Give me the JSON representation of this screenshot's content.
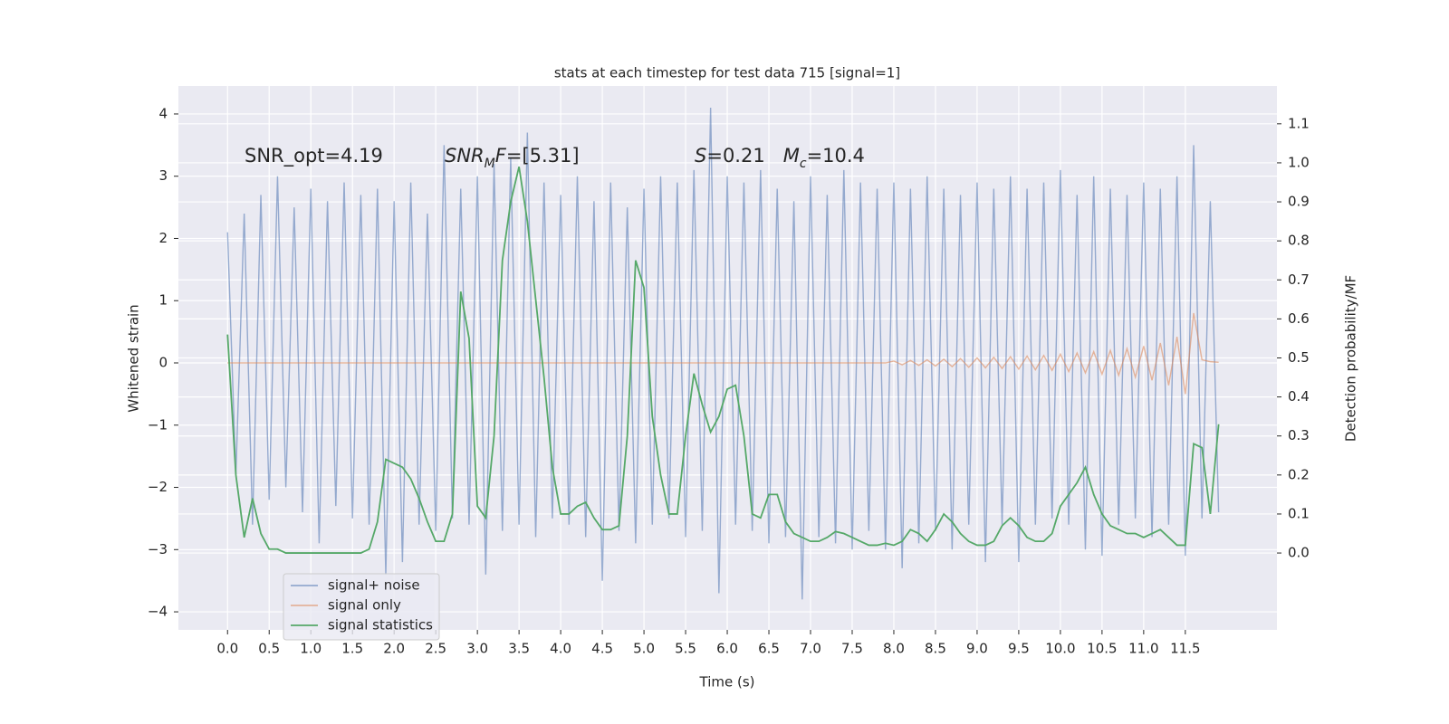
{
  "chart_data": {
    "type": "line",
    "title": "stats at each timestep for test data 715 [signal=1]",
    "xlabel": "Time (s)",
    "ylabel": "Whitened strain",
    "y2label": "Detection probability/MF",
    "annotations": [
      {
        "parts": [
          {
            "text": "SNR_opt=4.19",
            "style": "normal"
          }
        ]
      },
      {
        "parts": [
          {
            "text": "SNR",
            "style": "italic"
          },
          {
            "text": "M",
            "style": "sub"
          },
          {
            "text": "F",
            "style": "italic"
          },
          {
            "text": "=[5.31]",
            "style": "normal"
          }
        ]
      },
      {
        "parts": [
          {
            "text": "S",
            "style": "italic"
          },
          {
            "text": "=0.21   ",
            "style": "normal"
          },
          {
            "text": "M",
            "style": "italic"
          },
          {
            "text": "c",
            "style": "sub"
          },
          {
            "text": "=10.4",
            "style": "normal"
          }
        ]
      }
    ],
    "xlim": [
      -0.59,
      12.6
    ],
    "ylim": [
      -4.29,
      4.45
    ],
    "y2lim": [
      -0.197,
      1.197
    ],
    "xticks": [
      {
        "value": 0,
        "label": "0.0"
      },
      0.5,
      {
        "value": 1,
        "label": "1.0"
      },
      1.5,
      {
        "value": 2,
        "label": "2.0"
      },
      2.5,
      {
        "value": 3,
        "label": "3.0"
      },
      3.5,
      {
        "value": 4,
        "label": "4.0"
      },
      4.5,
      {
        "value": 5,
        "label": "5.0"
      },
      5.5,
      {
        "value": 6,
        "label": "6.0"
      },
      6.5,
      {
        "value": 7,
        "label": "7.0"
      },
      7.5,
      {
        "value": 8,
        "label": "8.0"
      },
      8.5,
      {
        "value": 9,
        "label": "9.0"
      },
      9.5,
      {
        "value": 10,
        "label": "10.0"
      },
      10.5,
      {
        "value": 11,
        "label": "11.0"
      },
      11.5
    ],
    "yticks": [
      {
        "value": -4,
        "label": "−4"
      },
      {
        "value": -3,
        "label": "−3"
      },
      {
        "value": -2,
        "label": "−2"
      },
      {
        "value": -1,
        "label": "−1"
      },
      0,
      1,
      2,
      3,
      4
    ],
    "y2ticks": [
      {
        "value": 0,
        "label": "0.0"
      },
      0.1,
      0.2,
      0.3,
      0.4,
      0.5,
      0.6,
      0.7,
      0.8,
      0.9,
      {
        "value": 1,
        "label": "1.0"
      },
      1.1
    ],
    "grid": true,
    "legend": "lower left",
    "x": [
      0,
      0.1,
      0.2,
      0.3,
      0.4,
      0.5,
      0.6,
      0.7,
      0.8,
      0.9,
      1,
      1.1,
      1.2,
      1.3,
      1.4,
      1.5,
      1.6,
      1.7,
      1.8,
      1.9,
      2,
      2.1,
      2.2,
      2.3,
      2.4,
      2.5,
      2.6,
      2.7,
      2.8,
      2.9,
      3,
      3.1,
      3.2,
      3.3,
      3.4,
      3.5,
      3.6,
      3.7,
      3.8,
      3.9,
      4,
      4.1,
      4.2,
      4.3,
      4.4,
      4.5,
      4.6,
      4.7,
      4.8,
      4.9,
      5,
      5.1,
      5.2,
      5.3,
      5.4,
      5.5,
      5.6,
      5.7,
      5.8,
      5.9,
      6,
      6.1,
      6.2,
      6.3,
      6.4,
      6.5,
      6.6,
      6.7,
      6.8,
      6.9,
      7,
      7.1,
      7.2,
      7.3,
      7.4,
      7.5,
      7.6,
      7.7,
      7.8,
      7.9,
      8,
      8.1,
      8.2,
      8.3,
      8.4,
      8.5,
      8.6,
      8.7,
      8.8,
      8.9,
      9,
      9.1,
      9.2,
      9.3,
      9.4,
      9.5,
      9.6,
      9.7,
      9.8,
      9.9,
      10,
      10.1,
      10.2,
      10.3,
      10.4,
      10.5,
      10.6,
      10.7,
      10.8,
      10.9,
      11,
      11.1,
      11.2,
      11.3,
      11.4,
      11.5,
      11.6,
      11.7,
      11.8,
      11.9
    ],
    "series": [
      {
        "name": "signal+ noise",
        "color": "#4c72b0",
        "values": [
          2.1,
          -1.8,
          2.4,
          -2.6,
          2.7,
          -2.2,
          3.0,
          -2.0,
          2.5,
          -2.4,
          2.8,
          -2.9,
          2.6,
          -2.3,
          2.9,
          -2.5,
          2.7,
          -2.6,
          2.8,
          -3.4,
          2.6,
          -3.2,
          2.9,
          -2.6,
          2.4,
          -2.7,
          3.5,
          -2.5,
          2.8,
          -2.6,
          3.0,
          -3.4,
          3.2,
          -2.7,
          3.3,
          -2.6,
          3.7,
          -2.8,
          2.9,
          -2.5,
          2.7,
          -2.6,
          3.0,
          -2.8,
          2.6,
          -3.5,
          2.9,
          -2.7,
          2.5,
          -2.9,
          2.8,
          -2.6,
          3.0,
          -2.5,
          2.9,
          -2.8,
          3.1,
          -2.7,
          4.1,
          -3.7,
          3.0,
          -2.6,
          2.9,
          -2.7,
          3.1,
          -2.9,
          2.8,
          -2.8,
          2.6,
          -3.8,
          3.0,
          -2.8,
          2.7,
          -2.9,
          3.1,
          -3.0,
          2.9,
          -2.7,
          2.8,
          -3.0,
          2.9,
          -3.3,
          2.8,
          -2.9,
          3.0,
          -2.7,
          2.8,
          -3.0,
          2.7,
          -2.6,
          2.9,
          -3.2,
          2.8,
          -2.6,
          3.0,
          -3.2,
          2.8,
          -2.6,
          2.9,
          -2.5,
          3.1,
          -2.6,
          2.7,
          -3.0,
          3.0,
          -3.1,
          2.8,
          -2.6,
          2.7,
          -2.5,
          2.9,
          -2.8,
          2.8,
          -2.6,
          3.0,
          -3.1,
          3.5,
          -2.5,
          2.6,
          -2.4
        ]
      },
      {
        "name": "signal only",
        "color": "#dd8452",
        "values": [
          0,
          0,
          0,
          0,
          0,
          0,
          0,
          0,
          0,
          0,
          0,
          0,
          0,
          0,
          0,
          0,
          0,
          0,
          0,
          0,
          0,
          0,
          0,
          0,
          0,
          0,
          0,
          0,
          0,
          0,
          0,
          0,
          0,
          0,
          0,
          0,
          0,
          0,
          0,
          0,
          0,
          0,
          0,
          0,
          0,
          0,
          0,
          0,
          0,
          0,
          0,
          0,
          0,
          0,
          0,
          0,
          0,
          0,
          0,
          0,
          0,
          0,
          0,
          0,
          0,
          0,
          0,
          0,
          0,
          0,
          0,
          0,
          0,
          0,
          0,
          0,
          0,
          0,
          0,
          0,
          0.03,
          -0.03,
          0.04,
          -0.04,
          0.05,
          -0.05,
          0.06,
          -0.06,
          0.07,
          -0.07,
          0.08,
          -0.08,
          0.09,
          -0.09,
          0.1,
          -0.1,
          0.11,
          -0.11,
          0.12,
          -0.12,
          0.14,
          -0.14,
          0.16,
          -0.16,
          0.18,
          -0.18,
          0.2,
          -0.2,
          0.23,
          -0.23,
          0.27,
          -0.28,
          0.32,
          -0.36,
          0.42,
          -0.5,
          0.8,
          0.05,
          0.02,
          0.01
        ]
      },
      {
        "name": "signal statistics",
        "color": "#55a868",
        "axis": "y2",
        "values": [
          0.56,
          0.2,
          0.04,
          0.14,
          0.05,
          0.01,
          0.01,
          0,
          0,
          0,
          0,
          0,
          0,
          0,
          0,
          0,
          0,
          0.01,
          0.08,
          0.24,
          0.23,
          0.22,
          0.19,
          0.14,
          0.08,
          0.03,
          0.03,
          0.1,
          0.67,
          0.55,
          0.12,
          0.09,
          0.3,
          0.75,
          0.9,
          0.99,
          0.85,
          0.65,
          0.45,
          0.22,
          0.1,
          0.1,
          0.12,
          0.13,
          0.09,
          0.06,
          0.06,
          0.07,
          0.3,
          0.75,
          0.68,
          0.35,
          0.2,
          0.1,
          0.1,
          0.3,
          0.46,
          0.38,
          0.31,
          0.35,
          0.42,
          0.43,
          0.3,
          0.1,
          0.09,
          0.15,
          0.15,
          0.08,
          0.05,
          0.04,
          0.03,
          0.03,
          0.04,
          0.055,
          0.05,
          0.04,
          0.03,
          0.02,
          0.02,
          0.025,
          0.02,
          0.03,
          0.06,
          0.05,
          0.03,
          0.06,
          0.1,
          0.08,
          0.05,
          0.03,
          0.02,
          0.02,
          0.03,
          0.07,
          0.09,
          0.07,
          0.04,
          0.03,
          0.03,
          0.05,
          0.12,
          0.15,
          0.18,
          0.22,
          0.15,
          0.1,
          0.07,
          0.06,
          0.05,
          0.05,
          0.04,
          0.05,
          0.06,
          0.04,
          0.02,
          0.02,
          0.28,
          0.27,
          0.1,
          0.33
        ]
      }
    ]
  }
}
